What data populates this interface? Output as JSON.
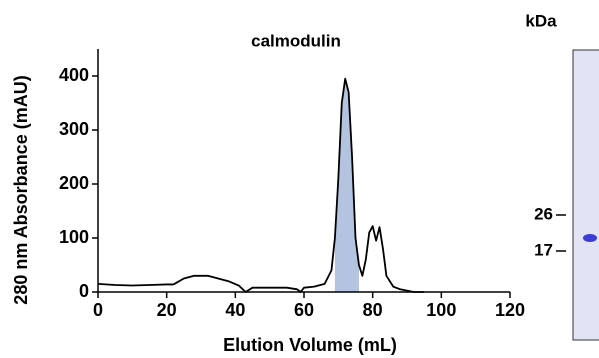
{
  "chart_data": {
    "type": "line",
    "title": "calmodulin",
    "xlabel": "Elution Volume (mL)",
    "ylabel": "280 nm Absorbance (mAU)",
    "x": [
      0,
      5,
      10,
      15,
      20,
      22,
      25,
      28,
      32,
      35,
      38,
      41,
      43,
      45,
      50,
      55,
      58,
      59,
      60,
      63,
      66,
      68,
      69,
      70,
      71,
      72,
      73,
      74,
      75,
      76,
      77,
      78,
      79,
      80,
      81,
      82,
      83,
      84,
      86,
      88,
      92,
      95
    ],
    "series": [
      {
        "name": "calmodulin",
        "color": "#000000",
        "values": [
          15,
          13,
          12,
          13,
          14,
          14,
          25,
          30,
          30,
          25,
          20,
          12,
          0,
          8,
          8,
          8,
          5,
          0,
          8,
          10,
          15,
          40,
          100,
          210,
          350,
          395,
          370,
          250,
          100,
          50,
          30,
          60,
          110,
          122,
          95,
          120,
          80,
          30,
          10,
          5,
          0,
          0
        ]
      }
    ],
    "highlight": {
      "x": [
        69,
        76
      ],
      "color": "#b4c3df"
    },
    "xlim": [
      0,
      120
    ],
    "ylim": [
      0,
      450
    ],
    "xticks": [
      0,
      20,
      40,
      60,
      80,
      100,
      120
    ],
    "yticks": [
      0,
      100,
      200,
      300,
      400
    ]
  },
  "gel": {
    "unit": "kDa",
    "markers": [
      "26",
      "17"
    ]
  }
}
